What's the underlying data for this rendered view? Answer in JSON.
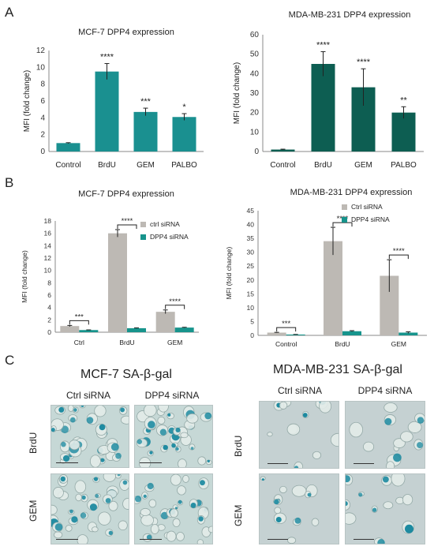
{
  "panels": {
    "a": "A",
    "b": "B",
    "c": "C"
  },
  "colors": {
    "mcf7_bar": "#1a9090",
    "mda_bar": "#0d5e52",
    "ctrl_sirna": "#bdb9b4",
    "dpp4_sirna": "#17948c",
    "stain": "#1d8aa0"
  },
  "chart_data": [
    {
      "type": "bar",
      "title": "MCF-7 DPP4 expression",
      "ylabel": "MFI (fold change)",
      "categories": [
        "Control",
        "BrdU",
        "GEM",
        "PALBO"
      ],
      "values": [
        1.0,
        9.5,
        4.7,
        4.1
      ],
      "errors": [
        0.05,
        0.95,
        0.45,
        0.4
      ],
      "significance": [
        "",
        "****",
        "***",
        "*"
      ],
      "ylim": [
        0,
        12
      ],
      "yticks": [
        "0",
        "2",
        "4",
        "6",
        "8",
        "10",
        "12"
      ]
    },
    {
      "type": "bar",
      "title": "MDA-MB-231 DPP4 expression",
      "ylabel": "MFI (fold change)",
      "categories": [
        "Control",
        "BrdU",
        "GEM",
        "PALBO"
      ],
      "values": [
        1.0,
        45.0,
        33.0,
        20.0
      ],
      "errors": [
        0.2,
        6.3,
        9.5,
        3.0
      ],
      "significance": [
        "",
        "****",
        "****",
        "**"
      ],
      "ylim": [
        0,
        60
      ],
      "yticks": [
        "0",
        "10",
        "20",
        "30",
        "40",
        "50",
        "60"
      ]
    },
    {
      "type": "bar",
      "title": "MCF-7 DPP4 expression",
      "ylabel": "MFI (fold change)",
      "categories": [
        "Ctrl",
        "BrdU",
        "GEM"
      ],
      "series": [
        {
          "name": "ctrl siRNA",
          "values": [
            1.0,
            16.0,
            3.3
          ],
          "errors": [
            0.1,
            0.6,
            0.3
          ]
        },
        {
          "name": "DPP4 siRNA",
          "values": [
            0.35,
            0.65,
            0.75
          ],
          "errors": [
            0.03,
            0.05,
            0.05
          ]
        }
      ],
      "significance": [
        "***",
        "****",
        "****"
      ],
      "ylim": [
        0,
        18
      ],
      "yticks": [
        "0",
        "2",
        "4",
        "6",
        "8",
        "10",
        "12",
        "14",
        "16",
        "18"
      ],
      "legend": "top-right"
    },
    {
      "type": "bar",
      "title": "MDA-MB-231 DPP4 expression",
      "ylabel": "MFI (fold change)",
      "categories": [
        "Control",
        "BrdU",
        "GEM"
      ],
      "series": [
        {
          "name": "Ctrl siRNA",
          "values": [
            1.0,
            34.0,
            21.5
          ],
          "errors": [
            0.1,
            5.0,
            5.8
          ]
        },
        {
          "name": "DPP4 siRNA",
          "values": [
            0.3,
            1.5,
            1.0
          ],
          "errors": [
            0.05,
            0.2,
            0.3
          ]
        }
      ],
      "significance": [
        "***",
        "****",
        "****"
      ],
      "ylim": [
        0,
        45
      ],
      "yticks": [
        "0",
        "5",
        "10",
        "15",
        "20",
        "25",
        "30",
        "35",
        "40",
        "45"
      ],
      "legend": "top-right"
    }
  ],
  "images": {
    "left": {
      "title": "MCF-7 SA-β-gal",
      "cols": [
        "Ctrl siRNA",
        "DPP4 siRNA"
      ],
      "rows": [
        "BrdU",
        "GEM"
      ]
    },
    "right": {
      "title": "MDA-MB-231 SA-β-gal",
      "cols": [
        "Ctrl siRNA",
        "DPP4 siRNA"
      ],
      "rows": [
        "BrdU",
        "GEM"
      ]
    }
  }
}
